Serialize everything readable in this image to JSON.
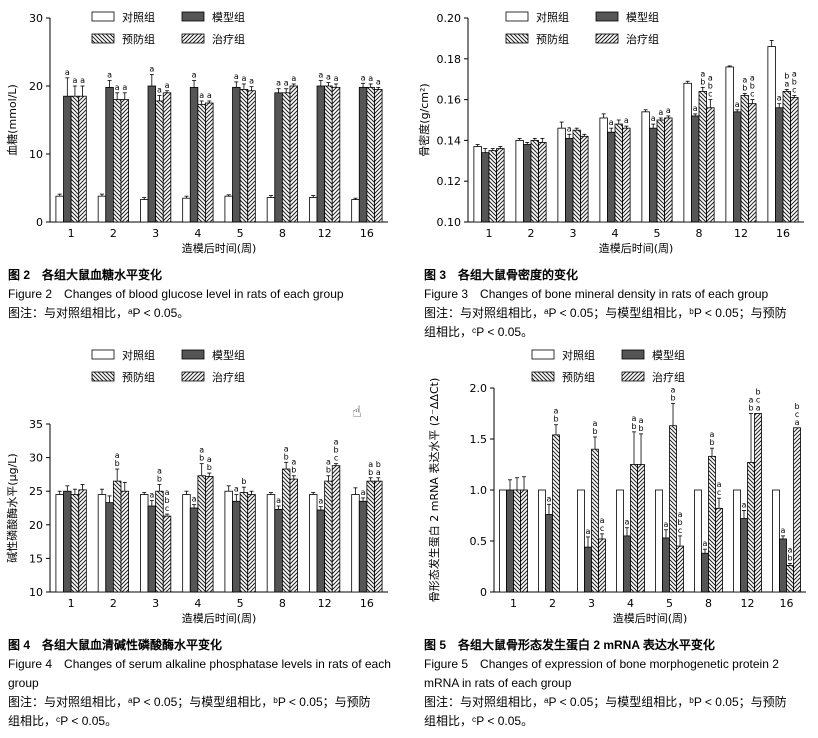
{
  "legend_labels": [
    "对照组",
    "模型组",
    "预防组",
    "治疗组"
  ],
  "x_axis_label": "造模后时间(周)",
  "charts": [
    {
      "id": "fig2",
      "chart_data": {
        "type": "bar",
        "categories": [
          "1",
          "2",
          "3",
          "4",
          "5",
          "8",
          "12",
          "16"
        ],
        "ylabel": "血糖(mmol/L)",
        "xlabel": "造模后时间(周)",
        "ylim": [
          0,
          30
        ],
        "yticks": [
          0,
          10,
          20,
          30
        ],
        "ytick_labels": [
          "0",
          "10",
          "20",
          "30"
        ],
        "series": [
          {
            "name": "对照组",
            "values": [
              3.8,
              3.8,
              3.3,
              3.5,
              3.8,
              3.6,
              3.6,
              3.3
            ],
            "errors": [
              0.3,
              0.3,
              0.3,
              0.3,
              0.2,
              0.3,
              0.3,
              0.2
            ],
            "labels": [
              "",
              "",
              "",
              "",
              "",
              "",
              "",
              ""
            ]
          },
          {
            "name": "模型组",
            "values": [
              18.5,
              19.8,
              20.0,
              19.8,
              19.8,
              19.0,
              20.0,
              19.8
            ],
            "errors": [
              2.7,
              1.0,
              1.7,
              1.0,
              0.8,
              0.6,
              0.8,
              0.6
            ],
            "labels": [
              "a",
              "a",
              "a",
              "a",
              "a",
              "a",
              "a",
              "a"
            ]
          },
          {
            "name": "预防组",
            "values": [
              18.5,
              18.0,
              17.8,
              17.3,
              19.5,
              19.0,
              20.0,
              19.8
            ],
            "errors": [
              1.5,
              1.0,
              0.8,
              0.5,
              0.8,
              0.6,
              0.5,
              0.5
            ],
            "labels": [
              "a",
              "a",
              "a",
              "a",
              "a",
              "a",
              "a",
              "a"
            ]
          },
          {
            "name": "治疗组",
            "values": [
              18.5,
              18.0,
              19.0,
              17.5,
              19.3,
              20.0,
              19.8,
              19.5
            ],
            "errors": [
              1.5,
              1.0,
              0.3,
              0.3,
              0.6,
              0.3,
              0.5,
              0.3
            ],
            "labels": [
              "a",
              "a",
              "a",
              "a",
              "a",
              "a",
              "a",
              "a"
            ]
          }
        ]
      },
      "caption_cn": "图 2　各组大鼠血糖水平变化",
      "caption_en": "Figure 2　Changes of blood glucose level in rats of each group",
      "note_lines": [
        "图注：与对照组相比，ᵃP < 0.05。"
      ]
    },
    {
      "id": "fig3",
      "chart_data": {
        "type": "bar",
        "categories": [
          "1",
          "2",
          "3",
          "4",
          "5",
          "8",
          "12",
          "16"
        ],
        "ylabel": "骨密度(g/cm²)",
        "xlabel": "造模后时间(周)",
        "ylim": [
          0.1,
          0.2
        ],
        "yticks": [
          0.1,
          0.12,
          0.14,
          0.16,
          0.18,
          0.2
        ],
        "ytick_labels": [
          "0.10",
          "0.12",
          "0.14",
          "0.16",
          "0.18",
          "0.20"
        ],
        "series": [
          {
            "name": "对照组",
            "values": [
              0.137,
              0.14,
              0.146,
              0.151,
              0.154,
              0.168,
              0.176,
              0.186
            ],
            "errors": [
              0.001,
              0.001,
              0.003,
              0.002,
              0.001,
              0.001,
              0.0005,
              0.003
            ],
            "labels": [
              "",
              "",
              "",
              "",
              "",
              "",
              "",
              ""
            ]
          },
          {
            "name": "模型组",
            "values": [
              0.134,
              0.138,
              0.141,
              0.144,
              0.146,
              0.152,
              0.154,
              0.156
            ],
            "errors": [
              0.002,
              0.001,
              0.002,
              0.002,
              0.002,
              0.001,
              0.001,
              0.002
            ],
            "labels": [
              "",
              "",
              "a",
              "a",
              "a",
              "a",
              "a",
              "a"
            ]
          },
          {
            "name": "预防组",
            "values": [
              0.135,
              0.14,
              0.145,
              0.148,
              0.15,
              0.164,
              0.162,
              0.164
            ],
            "errors": [
              0.001,
              0.001,
              0.001,
              0.002,
              0.001,
              0.002,
              0.001,
              0.001
            ],
            "labels": [
              "",
              "",
              "",
              "",
              "a",
              "a\nb",
              "a\nb",
              "b\na"
            ]
          },
          {
            "name": "治疗组",
            "values": [
              0.136,
              0.139,
              0.142,
              0.146,
              0.151,
              0.156,
              0.158,
              0.161
            ],
            "errors": [
              0.001,
              0.002,
              0.001,
              0.001,
              0.001,
              0.004,
              0.002,
              0.001
            ],
            "labels": [
              "",
              "",
              "",
              "a",
              "a",
              "a\nb\nc",
              "a\nb\nc",
              "a\nb\nc"
            ]
          }
        ]
      },
      "caption_cn": "图 3　各组大鼠骨密度的变化",
      "caption_en": "Figure 3　Changes of bone mineral density in rats of each group",
      "note_lines": [
        "图注：与对照组相比，ᵃP < 0.05；与模型组相比，ᵇP < 0.05；与预防",
        "组相比，ᶜP < 0.05。"
      ]
    },
    {
      "id": "fig4",
      "chart_data": {
        "type": "bar",
        "categories": [
          "1",
          "2",
          "3",
          "4",
          "5",
          "8",
          "12",
          "16"
        ],
        "ylabel": "碱性磷酸酶水平(μg/L)",
        "xlabel": "造模后时间(周)",
        "ylim": [
          10,
          35
        ],
        "yticks": [
          10,
          15,
          20,
          25,
          30,
          35
        ],
        "ytick_labels": [
          "10",
          "15",
          "20",
          "25",
          "30",
          "35"
        ],
        "series": [
          {
            "name": "对照组",
            "values": [
              24.5,
              24.5,
              24.5,
              24.5,
              25.0,
              24.5,
              24.5,
              24.5
            ],
            "errors": [
              0.5,
              0.8,
              0.3,
              0.5,
              0.8,
              0.3,
              0.3,
              1.0
            ],
            "labels": [
              "",
              "",
              "",
              "",
              "",
              "",
              "",
              ""
            ]
          },
          {
            "name": "模型组",
            "values": [
              25.0,
              23.3,
              22.8,
              22.5,
              23.5,
              22.3,
              22.2,
              23.5
            ],
            "errors": [
              0.8,
              1.0,
              0.8,
              0.5,
              1.0,
              0.5,
              0.5,
              0.5
            ],
            "labels": [
              "",
              "",
              "a",
              "a",
              "a",
              "a",
              "a",
              "a"
            ]
          },
          {
            "name": "预防组",
            "values": [
              24.5,
              26.5,
              25.0,
              27.3,
              24.8,
              28.3,
              26.5,
              26.5
            ],
            "errors": [
              0.8,
              1.8,
              1.0,
              1.8,
              0.8,
              1.0,
              0.8,
              0.5
            ],
            "labels": [
              "",
              "a\nb",
              "a\nb",
              "a\nb",
              "b",
              "a\nb",
              "a\nb",
              "a\nb"
            ]
          },
          {
            "name": "治疗组",
            "values": [
              25.2,
              25.0,
              21.3,
              27.2,
              24.5,
              26.8,
              28.8,
              26.5
            ],
            "errors": [
              0.8,
              1.3,
              0.3,
              0.5,
              0.5,
              0.5,
              0.3,
              0.5
            ],
            "labels": [
              "",
              "",
              "a\nb\nc",
              "a\nb",
              "",
              "a\nb",
              "a\nb\nc",
              "b\na"
            ]
          }
        ]
      },
      "caption_cn": "图 4　各组大鼠血清碱性磷酸酶水平变化",
      "caption_en": "Figure 4　Changes of serum alkaline phosphatase levels in rats of each group",
      "note_lines": [
        "图注：与对照组相比，ᵃP < 0.05；与模型组相比，ᵇP < 0.05；与预防",
        "组相比，ᶜP < 0.05。"
      ]
    },
    {
      "id": "fig5",
      "chart_data": {
        "type": "bar",
        "categories": [
          "1",
          "2",
          "3",
          "4",
          "5",
          "8",
          "12",
          "16"
        ],
        "ylabel": "骨形态发生蛋白 2 mRNA 表达水平 (2⁻ΔΔCt)",
        "xlabel": "造模后时间(周)",
        "ylim": [
          0,
          2.0
        ],
        "yticks": [
          0,
          0.5,
          1.0,
          1.5,
          2.0
        ],
        "ytick_labels": [
          "0",
          "0.5",
          "1.0",
          "1.5",
          "2.0"
        ],
        "series": [
          {
            "name": "对照组",
            "values": [
              1.0,
              1.0,
              1.0,
              1.0,
              1.0,
              1.0,
              1.0,
              1.0
            ],
            "errors": [
              0,
              0,
              0,
              0,
              0,
              0,
              0,
              0
            ],
            "labels": [
              "",
              "",
              "",
              "",
              "",
              "",
              "",
              ""
            ]
          },
          {
            "name": "模型组",
            "values": [
              1.0,
              0.76,
              0.44,
              0.55,
              0.53,
              0.38,
              0.72,
              0.52
            ],
            "errors": [
              0.1,
              0.1,
              0.1,
              0.08,
              0.08,
              0.04,
              0.08,
              0.03
            ],
            "labels": [
              "",
              "a",
              "a",
              "a",
              "a",
              "a",
              "a",
              "a"
            ]
          },
          {
            "name": "预防组",
            "values": [
              1.0,
              1.54,
              1.4,
              1.25,
              1.63,
              1.33,
              1.27,
              0.26
            ],
            "errors": [
              0.12,
              0.1,
              0.12,
              0.32,
              0.22,
              0.08,
              0.48,
              0.02
            ],
            "labels": [
              "",
              "a\nb",
              "a\nb",
              "a\nb",
              "a\nb",
              "a\nb",
              "a\nb",
              "a\nb"
            ]
          },
          {
            "name": "治疗组",
            "values": [
              1.0,
              0.0,
              0.52,
              1.25,
              0.45,
              0.82,
              1.75,
              1.61
            ],
            "errors": [
              0.13,
              0,
              0.05,
              0.3,
              0.1,
              0.1,
              0,
              0
            ],
            "labels": [
              "",
              "",
              "a\nc",
              "a\nb",
              "a\nb\nc",
              "a\nc",
              "b\nc\na",
              "b\nc\na"
            ]
          }
        ]
      },
      "caption_cn": "图 5　各组大鼠骨形态发生蛋白 2 mRNA 表达水平变化",
      "caption_en": "Figure 5　Changes of expression of bone morphogenetic protein 2 mRNA in rats of each group",
      "note_lines": [
        "图注：与对照组相比，ᵃP < 0.05；与模型组相比，ᵇP < 0.05；与预防",
        "组相比，ᶜP < 0.05。"
      ]
    }
  ]
}
